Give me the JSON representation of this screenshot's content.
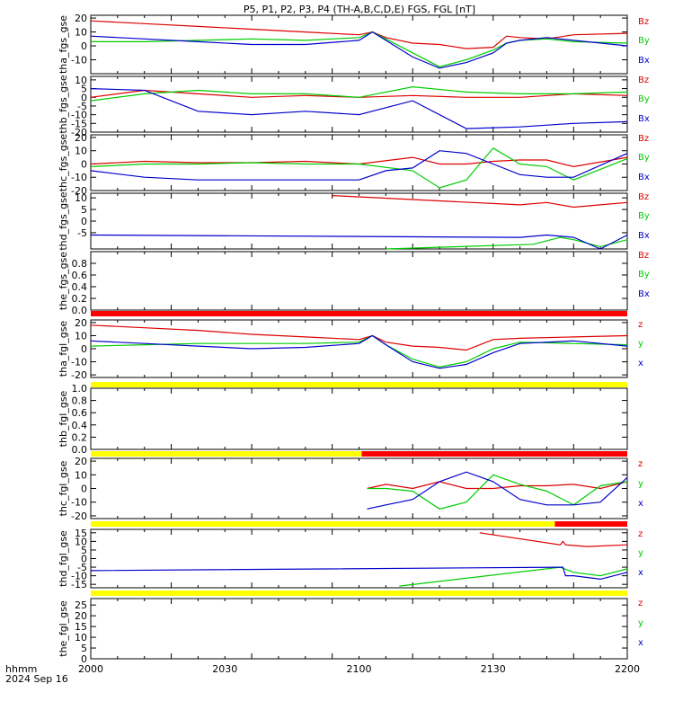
{
  "title": "P5, P1, P2, P3, P4 (TH-A,B,C,D,E) FGS, FGL [nT]",
  "colors": {
    "red": "#dd0000",
    "green": "#00cc00",
    "blue": "#0000cc",
    "yellow": "#ffff00",
    "barred": "#ff0000"
  },
  "xaxis": {
    "corner_label_1": "hhmm",
    "corner_label_2": "2024 Sep 16",
    "ticks": [
      "2000",
      "2030",
      "2100",
      "2130",
      "2200"
    ]
  },
  "chart_data": [
    {
      "type": "line",
      "ylabel": "tha_fgs_gse",
      "ylim": [
        -20,
        22
      ],
      "yticks": [
        "-10",
        "0",
        "10",
        "20"
      ],
      "x_range": [
        "2000",
        "2200"
      ],
      "series": [
        {
          "name": "Bz",
          "color": "red",
          "x": [
            0,
            20,
            40,
            60,
            80,
            100,
            105,
            110,
            120,
            130,
            140,
            150,
            155,
            160,
            170,
            180,
            200
          ],
          "values": [
            18,
            16,
            14,
            12,
            10,
            8,
            10,
            6,
            2,
            1,
            -2,
            -1,
            7,
            6,
            5,
            8,
            9
          ]
        },
        {
          "name": "By",
          "color": "green",
          "x": [
            0,
            20,
            40,
            60,
            80,
            100,
            105,
            110,
            120,
            130,
            140,
            150,
            155,
            160,
            170,
            180,
            200
          ],
          "values": [
            3,
            3,
            4,
            5,
            4,
            6,
            10,
            5,
            -5,
            -15,
            -10,
            -3,
            2,
            4,
            5,
            3,
            2
          ]
        },
        {
          "name": "Bx",
          "color": "blue",
          "x": [
            0,
            20,
            40,
            60,
            80,
            100,
            105,
            110,
            120,
            130,
            140,
            150,
            155,
            160,
            170,
            180,
            200
          ],
          "values": [
            7,
            5,
            3,
            1,
            1,
            4,
            10,
            4,
            -8,
            -16,
            -12,
            -5,
            2,
            4,
            6,
            4,
            0
          ]
        }
      ]
    },
    {
      "type": "line",
      "ylabel": "thb_fgs_gse",
      "ylim": [
        -20,
        12
      ],
      "yticks": [
        "-20",
        "-15",
        "-10",
        "-5",
        "0",
        "5",
        "10"
      ],
      "x_range": [
        "2000",
        "2200"
      ],
      "series": [
        {
          "name": "Bz",
          "color": "red",
          "x": [
            0,
            20,
            40,
            60,
            80,
            100,
            120,
            140,
            160,
            180,
            200
          ],
          "values": [
            0,
            4,
            2,
            0,
            1,
            0,
            1,
            0,
            0,
            2,
            1
          ]
        },
        {
          "name": "By",
          "color": "green",
          "x": [
            0,
            20,
            40,
            60,
            80,
            100,
            120,
            140,
            160,
            180,
            200
          ],
          "values": [
            -2,
            2,
            4,
            2,
            2,
            0,
            6,
            3,
            2,
            2,
            3
          ]
        },
        {
          "name": "Bx",
          "color": "blue",
          "x": [
            0,
            20,
            40,
            60,
            80,
            100,
            120,
            140,
            160,
            180,
            200
          ],
          "values": [
            5,
            4,
            -8,
            -10,
            -8,
            -10,
            -2,
            -18,
            -17,
            -15,
            -14
          ]
        }
      ]
    },
    {
      "type": "line",
      "ylabel": "thc_fgs_gse",
      "ylim": [
        -20,
        22
      ],
      "yticks": [
        "-20",
        "-10",
        "0",
        "10",
        "20"
      ],
      "x_range": [
        "2000",
        "2200"
      ],
      "series": [
        {
          "name": "Bz",
          "color": "red",
          "x": [
            0,
            20,
            40,
            60,
            80,
            100,
            120,
            130,
            140,
            150,
            160,
            170,
            180,
            200
          ],
          "values": [
            0,
            2,
            1,
            1,
            2,
            0,
            5,
            0,
            0,
            2,
            3,
            3,
            -2,
            5
          ]
        },
        {
          "name": "By",
          "color": "green",
          "x": [
            0,
            20,
            40,
            60,
            80,
            100,
            120,
            130,
            140,
            150,
            160,
            170,
            180,
            200
          ],
          "values": [
            -2,
            0,
            0,
            1,
            0,
            0,
            -5,
            -18,
            -12,
            12,
            0,
            -2,
            -12,
            4
          ]
        },
        {
          "name": "Bx",
          "color": "blue",
          "x": [
            0,
            20,
            40,
            60,
            80,
            100,
            110,
            120,
            130,
            140,
            150,
            160,
            170,
            180,
            200
          ],
          "values": [
            -5,
            -10,
            -12,
            -12,
            -12,
            -12,
            -5,
            -3,
            10,
            8,
            0,
            -8,
            -10,
            -10,
            8
          ]
        }
      ]
    },
    {
      "type": "line",
      "ylabel": "thd_fgs_gse",
      "ylim": [
        -12,
        12
      ],
      "yticks": [
        "-5",
        "0",
        "5",
        "10"
      ],
      "x_range": [
        "2000",
        "2200"
      ],
      "series": [
        {
          "name": "Bz",
          "color": "red",
          "x": [
            90,
            160,
            170,
            180,
            190,
            200
          ],
          "values": [
            11,
            7,
            8,
            6,
            7,
            8
          ]
        },
        {
          "name": "By",
          "color": "green",
          "x": [
            110,
            165,
            175,
            180,
            190,
            200
          ],
          "values": [
            -12,
            -10,
            -7,
            -8,
            -11,
            -8
          ]
        },
        {
          "name": "Bx",
          "color": "blue",
          "x": [
            0,
            160,
            170,
            180,
            190,
            200
          ],
          "values": [
            -6,
            -7,
            -6,
            -7,
            -12,
            -6
          ]
        }
      ]
    },
    {
      "type": "line",
      "ylabel": "the_fgs_gse",
      "ylim": [
        0,
        1
      ],
      "yticks": [
        "0.0",
        "0.2",
        "0.4",
        "0.6",
        "0.8"
      ],
      "x_range": [
        "2000",
        "2200"
      ],
      "series": [
        {
          "name": "Bz",
          "color": "red",
          "x": [],
          "values": []
        },
        {
          "name": "By",
          "color": "green",
          "x": [],
          "values": []
        },
        {
          "name": "Bx",
          "color": "blue",
          "x": [],
          "values": []
        }
      ]
    },
    {
      "type": "line",
      "ylabel": "tha_fgl_gse",
      "ylim": [
        -22,
        22
      ],
      "yticks": [
        "-20",
        "-10",
        "0",
        "10",
        "20"
      ],
      "x_range": [
        "2000",
        "2200"
      ],
      "series": [
        {
          "name": "z",
          "color": "red",
          "x": [
            0,
            20,
            40,
            60,
            80,
            100,
            105,
            110,
            120,
            130,
            140,
            150,
            160,
            180,
            200
          ],
          "values": [
            18,
            16,
            14,
            11,
            9,
            7,
            10,
            5,
            2,
            1,
            -1,
            7,
            8,
            9,
            10
          ]
        },
        {
          "name": "y",
          "color": "green",
          "x": [
            0,
            20,
            40,
            60,
            80,
            100,
            105,
            110,
            120,
            130,
            140,
            150,
            160,
            180,
            200
          ],
          "values": [
            2,
            3,
            4,
            4,
            4,
            5,
            10,
            3,
            -8,
            -14,
            -10,
            0,
            5,
            4,
            3
          ]
        },
        {
          "name": "x",
          "color": "blue",
          "x": [
            0,
            20,
            40,
            60,
            80,
            100,
            105,
            110,
            120,
            130,
            140,
            150,
            160,
            180,
            200
          ],
          "values": [
            6,
            4,
            2,
            0,
            1,
            4,
            10,
            3,
            -10,
            -15,
            -12,
            -3,
            4,
            6,
            2
          ]
        }
      ]
    },
    {
      "type": "line",
      "ylabel": "thb_fgl_gse",
      "ylim": [
        0,
        1
      ],
      "yticks": [
        "0.0",
        "0.2",
        "0.4",
        "0.6",
        "0.8",
        "1.0"
      ],
      "x_range": [
        "2000",
        "2200"
      ],
      "series": [
        {
          "name": "z",
          "color": "red",
          "x": [],
          "values": []
        },
        {
          "name": "y",
          "color": "green",
          "x": [],
          "values": []
        },
        {
          "name": "x",
          "color": "blue",
          "x": [],
          "values": []
        }
      ]
    },
    {
      "type": "line",
      "ylabel": "thc_fgl_gse",
      "ylim": [
        -22,
        22
      ],
      "yticks": [
        "-20",
        "-10",
        "0",
        "10",
        "20"
      ],
      "x_range": [
        "2000",
        "2200"
      ],
      "series": [
        {
          "name": "z",
          "color": "red",
          "x": [
            103,
            110,
            120,
            130,
            140,
            150,
            160,
            170,
            180,
            190,
            200
          ],
          "values": [
            0,
            3,
            0,
            5,
            0,
            0,
            2,
            2,
            3,
            0,
            5
          ]
        },
        {
          "name": "y",
          "color": "green",
          "x": [
            103,
            110,
            120,
            130,
            140,
            150,
            160,
            170,
            180,
            190,
            200
          ],
          "values": [
            0,
            0,
            -2,
            -15,
            -10,
            10,
            3,
            -2,
            -12,
            2,
            5
          ]
        },
        {
          "name": "x",
          "color": "blue",
          "x": [
            103,
            110,
            120,
            130,
            140,
            150,
            160,
            170,
            180,
            190,
            200
          ],
          "values": [
            -15,
            -12,
            -8,
            5,
            12,
            5,
            -8,
            -12,
            -12,
            -10,
            8
          ]
        }
      ]
    },
    {
      "type": "line",
      "ylabel": "thd_fgl_gse",
      "ylim": [
        -17,
        17
      ],
      "yticks": [
        "-15",
        "-10",
        "-5",
        "0",
        "5",
        "10",
        "15"
      ],
      "x_range": [
        "2000",
        "2200"
      ],
      "series": [
        {
          "name": "z",
          "color": "red",
          "x": [
            145,
            175,
            176,
            177,
            185,
            200
          ],
          "values": [
            15,
            8,
            10,
            8,
            7,
            8
          ]
        },
        {
          "name": "y",
          "color": "green",
          "x": [
            115,
            175,
            180,
            190,
            200
          ],
          "values": [
            -16,
            -5,
            -8,
            -10,
            -6
          ]
        },
        {
          "name": "x",
          "color": "blue",
          "x": [
            0,
            175,
            176,
            177,
            180,
            190,
            200
          ],
          "values": [
            -7,
            -5,
            -5,
            -10,
            -10,
            -12,
            -8
          ]
        }
      ]
    },
    {
      "type": "line",
      "ylabel": "the_fgl_gse",
      "ylim": [
        0,
        28
      ],
      "yticks": [
        "0",
        "5",
        "10",
        "15",
        "20",
        "25"
      ],
      "x_range": [
        "2000",
        "2200"
      ],
      "series": [
        {
          "name": "z",
          "color": "red",
          "x": [],
          "values": []
        },
        {
          "name": "y",
          "color": "green",
          "x": [],
          "values": []
        },
        {
          "name": "x",
          "color": "blue",
          "x": [],
          "values": []
        }
      ]
    }
  ],
  "status_bars": [
    {
      "segments": [
        {
          "from": 0,
          "to": 200,
          "color": "barred"
        }
      ]
    },
    {
      "segments": [
        {
          "from": 0,
          "to": 200,
          "color": "yellow"
        }
      ]
    },
    {
      "segments": [
        {
          "from": 0,
          "to": 101,
          "color": "yellow"
        },
        {
          "from": 101,
          "to": 200,
          "color": "barred"
        }
      ]
    },
    {
      "segments": [
        {
          "from": 0,
          "to": 173,
          "color": "yellow"
        },
        {
          "from": 173,
          "to": 200,
          "color": "barred"
        }
      ]
    },
    {
      "segments": [
        {
          "from": 0,
          "to": 200,
          "color": "yellow"
        }
      ]
    }
  ]
}
